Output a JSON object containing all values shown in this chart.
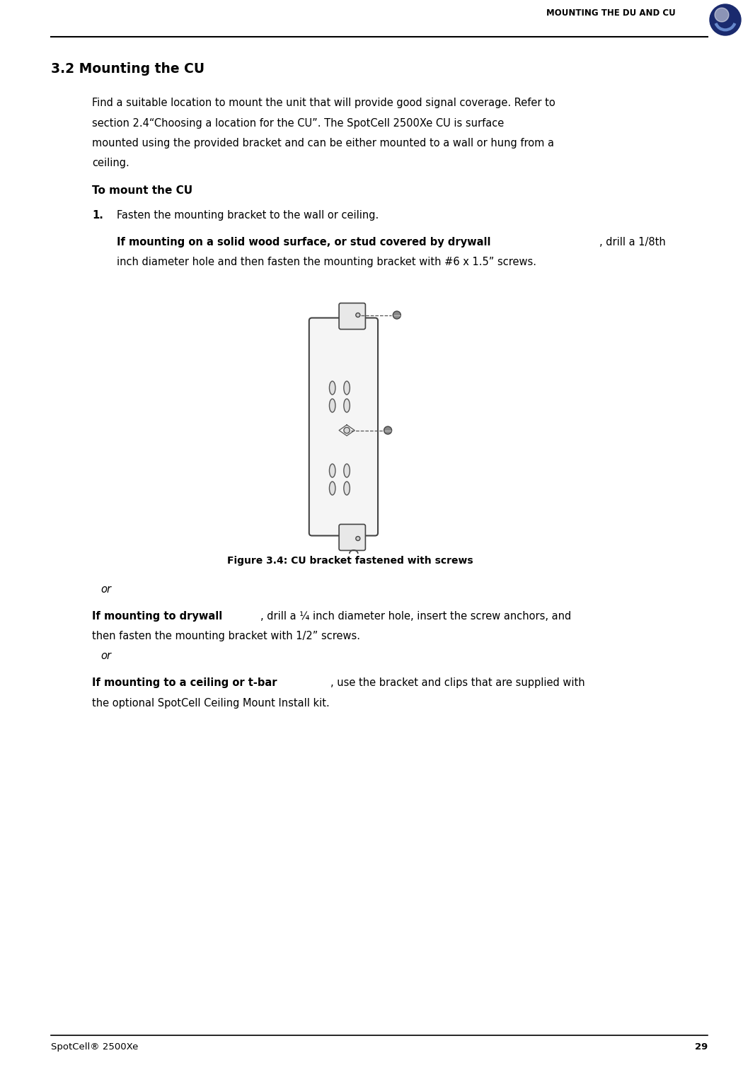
{
  "bg_color": "#ffffff",
  "header_title": "MOUNTING THE DU AND CU",
  "page_number": "29",
  "footer_left": "SpotCell® 2500Xe",
  "section_title": "3.2 Mounting the CU",
  "para1_line1": "Find a suitable location to mount the unit that will provide good signal coverage. Refer to",
  "para1_line2": "section 2.4“Choosing a location for the CU”. The SpotCell 2500Xe CU is surface",
  "para1_line3": "mounted using the provided bracket and can be either mounted to a wall or hung from a",
  "para1_line4": "ceiling.",
  "subhead": "To mount the CU",
  "step1": "Fasten the mounting bracket to the wall or ceiling.",
  "if1_bold": "If mounting on a solid wood surface, or stud covered by drywall",
  "if1_rest": ", drill a 1/8th",
  "if1_line2": "inch diameter hole and then fasten the mounting bracket with #6 x 1.5” screws.",
  "figure_caption": "Figure 3.4: CU bracket fastened with screws",
  "or1": "or",
  "if2_bold": "If mounting to drywall",
  "if2_rest": ", drill a ¼ inch diameter hole, insert the screw anchors, and",
  "if2_line2": "then fasten the mounting bracket with 1/2” screws.",
  "or2": "or",
  "if3_bold": "If mounting to a ceiling or t-bar",
  "if3_rest": ", use the bracket and clips that are supplied with",
  "if3_line2": "the optional SpotCell Ceiling Mount Install kit."
}
